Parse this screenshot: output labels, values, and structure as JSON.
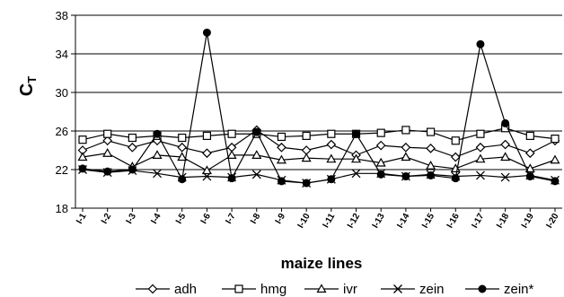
{
  "chart_data": {
    "type": "line",
    "title": "",
    "xlabel": "maize lines",
    "ylabel": "C",
    "ylabel_sub": "T",
    "ylim": [
      18,
      38
    ],
    "yticks": [
      "18",
      "22",
      "26",
      "30",
      "34",
      "38"
    ],
    "grid": true,
    "legend_position": "bottom",
    "categories": [
      "I-1",
      "I-2",
      "I-3",
      "I-4",
      "I-5",
      "I-6",
      "I-7",
      "I-8",
      "I-9",
      "I-10",
      "I-11",
      "I-12",
      "I-13",
      "I-14",
      "I-15",
      "I-16",
      "I-17",
      "I-18",
      "I-19",
      "I-20"
    ],
    "series": [
      {
        "name": "adh",
        "marker": "diamond",
        "values": [
          24.0,
          25.0,
          24.3,
          25.0,
          24.3,
          23.7,
          24.3,
          26.1,
          24.3,
          24.0,
          24.6,
          23.5,
          24.5,
          24.3,
          24.2,
          23.3,
          24.3,
          24.6,
          23.7,
          25.0
        ]
      },
      {
        "name": "hmg",
        "marker": "square",
        "values": [
          25.1,
          25.7,
          25.3,
          25.5,
          25.3,
          25.5,
          25.7,
          25.7,
          25.4,
          25.5,
          25.7,
          25.7,
          25.8,
          26.1,
          25.9,
          25.0,
          25.7,
          26.3,
          25.5,
          25.2
        ]
      },
      {
        "name": "ivr",
        "marker": "triangle",
        "values": [
          23.3,
          23.7,
          22.3,
          23.5,
          23.3,
          21.9,
          23.5,
          23.5,
          23.0,
          23.2,
          23.1,
          23.1,
          22.7,
          23.3,
          22.4,
          22.1,
          23.1,
          23.3,
          22.1,
          23.0
        ]
      },
      {
        "name": "zein",
        "marker": "cross",
        "values": [
          22.0,
          21.7,
          21.9,
          21.6,
          21.2,
          21.3,
          21.2,
          21.5,
          20.9,
          20.6,
          21.0,
          21.6,
          21.6,
          21.3,
          21.5,
          21.3,
          21.4,
          21.2,
          21.4,
          20.9
        ]
      },
      {
        "name": "zein*",
        "marker": "circle",
        "values": [
          22.1,
          21.8,
          22.0,
          25.7,
          21.0,
          36.2,
          21.1,
          25.9,
          20.8,
          20.6,
          21.0,
          25.7,
          21.5,
          21.3,
          21.4,
          21.1,
          35.0,
          26.8,
          21.3,
          20.8
        ]
      }
    ]
  }
}
